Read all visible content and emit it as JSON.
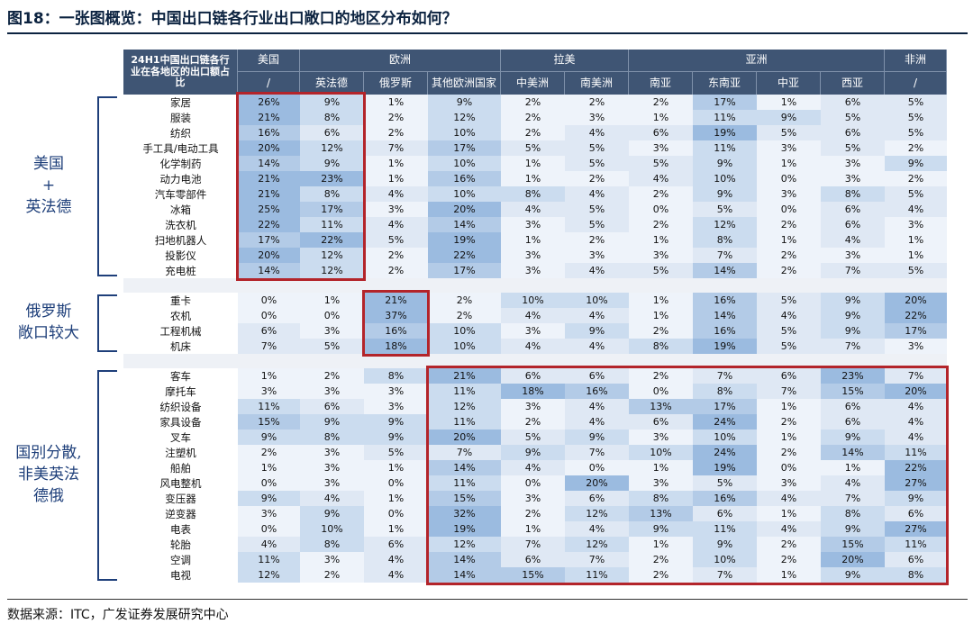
{
  "title": "图18：一张图概览：中国出口链各行业出口敞口的地区分布如何？",
  "source": "数据来源：ITC，广发证券发展研究中心",
  "colors": {
    "header_bg": "#3f5574",
    "highlight_box": "#b3242a",
    "bracket": "#1e3f7a",
    "cell_high": "#9bbbe0"
  },
  "chart_data": {
    "type": "table",
    "corner_label": "24H1中国出口链各行业在各地区的出口额占比",
    "regions": [
      {
        "name": "美国",
        "span": 1
      },
      {
        "name": "欧洲",
        "span": 3
      },
      {
        "name": "拉美",
        "span": 2
      },
      {
        "name": "亚洲",
        "span": 4
      },
      {
        "name": "非洲",
        "span": 1
      }
    ],
    "columns": [
      "/",
      "英法德",
      "俄罗斯",
      "其他欧洲国家",
      "中美洲",
      "南美洲",
      "南亚",
      "东南亚",
      "中亚",
      "西亚",
      "/"
    ],
    "groups": [
      {
        "label": "美国\n+\n英法德",
        "rows": [
          {
            "name": "家居",
            "values": [
              "26%",
              "9%",
              "1%",
              "9%",
              "2%",
              "2%",
              "2%",
              "17%",
              "1%",
              "6%",
              "5%"
            ]
          },
          {
            "name": "服装",
            "values": [
              "21%",
              "8%",
              "2%",
              "12%",
              "2%",
              "3%",
              "1%",
              "11%",
              "9%",
              "5%",
              "5%"
            ]
          },
          {
            "name": "纺织",
            "values": [
              "16%",
              "6%",
              "2%",
              "10%",
              "2%",
              "4%",
              "6%",
              "19%",
              "5%",
              "6%",
              "5%"
            ]
          },
          {
            "name": "手工具/电动工具",
            "values": [
              "20%",
              "12%",
              "7%",
              "17%",
              "5%",
              "5%",
              "3%",
              "11%",
              "3%",
              "5%",
              "2%"
            ]
          },
          {
            "name": "化学制药",
            "values": [
              "14%",
              "9%",
              "1%",
              "10%",
              "1%",
              "5%",
              "5%",
              "9%",
              "1%",
              "3%",
              "9%"
            ]
          },
          {
            "name": "动力电池",
            "values": [
              "21%",
              "23%",
              "1%",
              "16%",
              "1%",
              "2%",
              "4%",
              "10%",
              "0%",
              "3%",
              "2%"
            ]
          },
          {
            "name": "汽车零部件",
            "values": [
              "21%",
              "8%",
              "4%",
              "10%",
              "8%",
              "4%",
              "2%",
              "9%",
              "3%",
              "8%",
              "5%"
            ]
          },
          {
            "name": "冰箱",
            "values": [
              "25%",
              "17%",
              "3%",
              "20%",
              "4%",
              "5%",
              "0%",
              "5%",
              "0%",
              "6%",
              "4%"
            ]
          },
          {
            "name": "洗衣机",
            "values": [
              "22%",
              "11%",
              "4%",
              "14%",
              "3%",
              "5%",
              "2%",
              "12%",
              "2%",
              "6%",
              "3%"
            ]
          },
          {
            "name": "扫地机器人",
            "values": [
              "17%",
              "22%",
              "5%",
              "19%",
              "1%",
              "2%",
              "1%",
              "8%",
              "1%",
              "4%",
              "1%"
            ]
          },
          {
            "name": "投影仪",
            "values": [
              "20%",
              "12%",
              "2%",
              "22%",
              "3%",
              "3%",
              "3%",
              "7%",
              "2%",
              "3%",
              "1%"
            ]
          },
          {
            "name": "充电桩",
            "values": [
              "14%",
              "12%",
              "2%",
              "17%",
              "3%",
              "4%",
              "5%",
              "14%",
              "2%",
              "7%",
              "5%"
            ]
          }
        ]
      },
      {
        "label": "俄罗斯\n敞口较大",
        "rows": [
          {
            "name": "重卡",
            "values": [
              "0%",
              "1%",
              "21%",
              "2%",
              "10%",
              "10%",
              "1%",
              "16%",
              "5%",
              "9%",
              "20%"
            ]
          },
          {
            "name": "农机",
            "values": [
              "0%",
              "0%",
              "37%",
              "2%",
              "4%",
              "4%",
              "1%",
              "14%",
              "4%",
              "9%",
              "22%"
            ]
          },
          {
            "name": "工程机械",
            "values": [
              "6%",
              "3%",
              "16%",
              "10%",
              "3%",
              "9%",
              "2%",
              "16%",
              "5%",
              "9%",
              "17%"
            ]
          },
          {
            "name": "机床",
            "values": [
              "7%",
              "5%",
              "18%",
              "10%",
              "4%",
              "4%",
              "8%",
              "19%",
              "5%",
              "7%",
              "3%"
            ]
          }
        ]
      },
      {
        "label": "国别分散,\n非美英法\n德俄",
        "rows": [
          {
            "name": "客车",
            "values": [
              "1%",
              "2%",
              "8%",
              "21%",
              "6%",
              "6%",
              "2%",
              "7%",
              "6%",
              "23%",
              "7%"
            ]
          },
          {
            "name": "摩托车",
            "values": [
              "3%",
              "3%",
              "3%",
              "11%",
              "18%",
              "16%",
              "0%",
              "8%",
              "7%",
              "15%",
              "20%"
            ]
          },
          {
            "name": "纺织设备",
            "values": [
              "11%",
              "6%",
              "3%",
              "12%",
              "3%",
              "4%",
              "13%",
              "17%",
              "1%",
              "6%",
              "4%"
            ]
          },
          {
            "name": "家具设备",
            "values": [
              "15%",
              "9%",
              "9%",
              "11%",
              "2%",
              "4%",
              "6%",
              "24%",
              "2%",
              "6%",
              "4%"
            ]
          },
          {
            "name": "叉车",
            "values": [
              "9%",
              "8%",
              "9%",
              "20%",
              "5%",
              "9%",
              "3%",
              "10%",
              "1%",
              "9%",
              "4%"
            ]
          },
          {
            "name": "注塑机",
            "values": [
              "2%",
              "3%",
              "5%",
              "7%",
              "9%",
              "7%",
              "10%",
              "24%",
              "2%",
              "14%",
              "11%"
            ]
          },
          {
            "name": "船舶",
            "values": [
              "1%",
              "3%",
              "1%",
              "14%",
              "4%",
              "0%",
              "1%",
              "19%",
              "0%",
              "1%",
              "22%"
            ]
          },
          {
            "name": "风电整机",
            "values": [
              "0%",
              "3%",
              "0%",
              "11%",
              "0%",
              "20%",
              "3%",
              "5%",
              "3%",
              "4%",
              "27%"
            ]
          },
          {
            "name": "变压器",
            "values": [
              "9%",
              "4%",
              "1%",
              "15%",
              "3%",
              "6%",
              "8%",
              "16%",
              "4%",
              "7%",
              "9%"
            ]
          },
          {
            "name": "逆变器",
            "values": [
              "3%",
              "9%",
              "0%",
              "32%",
              "2%",
              "12%",
              "13%",
              "6%",
              "1%",
              "8%",
              "6%"
            ]
          },
          {
            "name": "电表",
            "values": [
              "0%",
              "10%",
              "1%",
              "19%",
              "1%",
              "4%",
              "9%",
              "11%",
              "4%",
              "9%",
              "27%"
            ]
          },
          {
            "name": "轮胎",
            "values": [
              "4%",
              "8%",
              "6%",
              "12%",
              "7%",
              "12%",
              "1%",
              "9%",
              "2%",
              "15%",
              "11%"
            ]
          },
          {
            "name": "空调",
            "values": [
              "11%",
              "3%",
              "4%",
              "14%",
              "6%",
              "7%",
              "2%",
              "10%",
              "2%",
              "20%",
              "6%"
            ]
          },
          {
            "name": "电视",
            "values": [
              "12%",
              "2%",
              "4%",
              "14%",
              "15%",
              "11%",
              "2%",
              "7%",
              "1%",
              "9%",
              "8%"
            ]
          }
        ]
      }
    ]
  }
}
